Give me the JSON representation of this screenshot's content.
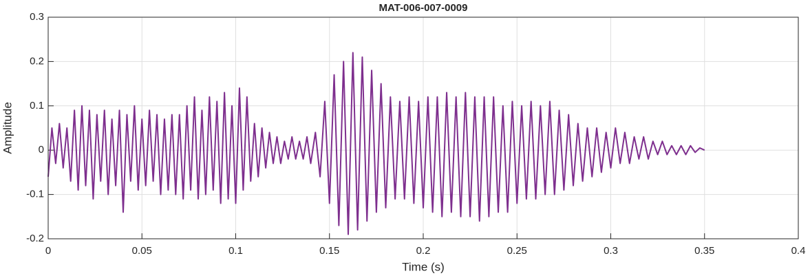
{
  "chart_data": {
    "type": "line",
    "title": "MAT-006-007-0009",
    "x_label": "Time (s)",
    "y_label": "Amplitude",
    "x": [
      0,
      0.002,
      0.004,
      0.006,
      0.008,
      0.01,
      0.012,
      0.014,
      0.016,
      0.018,
      0.02,
      0.022,
      0.024,
      0.026,
      0.028,
      0.03,
      0.032,
      0.034,
      0.036,
      0.038,
      0.04,
      0.042,
      0.044,
      0.046,
      0.048,
      0.05,
      0.052,
      0.054,
      0.056,
      0.058,
      0.06,
      0.062,
      0.064,
      0.066,
      0.068,
      0.07,
      0.072,
      0.074,
      0.076,
      0.078,
      0.08,
      0.082,
      0.084,
      0.086,
      0.088,
      0.09,
      0.092,
      0.094,
      0.096,
      0.098,
      0.1,
      0.102,
      0.104,
      0.106,
      0.108,
      0.11,
      0.112,
      0.114,
      0.116,
      0.118,
      0.12,
      0.122,
      0.124,
      0.126,
      0.128,
      0.13,
      0.132,
      0.134,
      0.136,
      0.138,
      0.14,
      0.1425,
      0.145,
      0.1475,
      0.15,
      0.1525,
      0.155,
      0.1575,
      0.16,
      0.1625,
      0.165,
      0.1675,
      0.17,
      0.1725,
      0.175,
      0.1775,
      0.18,
      0.1825,
      0.185,
      0.1875,
      0.19,
      0.1925,
      0.195,
      0.1975,
      0.2,
      0.2025,
      0.205,
      0.2075,
      0.21,
      0.2125,
      0.215,
      0.2175,
      0.22,
      0.2225,
      0.225,
      0.2275,
      0.23,
      0.2325,
      0.235,
      0.2375,
      0.24,
      0.2425,
      0.245,
      0.2475,
      0.25,
      0.2525,
      0.255,
      0.2575,
      0.26,
      0.2625,
      0.265,
      0.2675,
      0.27,
      0.2725,
      0.275,
      0.2775,
      0.28,
      0.2825,
      0.285,
      0.2875,
      0.29,
      0.2925,
      0.295,
      0.2975,
      0.3,
      0.3025,
      0.305,
      0.3075,
      0.31,
      0.3125,
      0.315,
      0.3175,
      0.32,
      0.3225,
      0.325,
      0.3275,
      0.33,
      0.3325,
      0.335,
      0.3375,
      0.34,
      0.3425,
      0.345,
      0.3475,
      0.35
    ],
    "values": [
      -0.06,
      0.05,
      -0.03,
      0.06,
      -0.04,
      0.05,
      -0.07,
      0.09,
      -0.09,
      0.1,
      -0.08,
      0.09,
      -0.11,
      0.08,
      -0.07,
      0.09,
      -0.1,
      0.07,
      -0.08,
      0.09,
      -0.14,
      0.08,
      -0.07,
      0.1,
      -0.09,
      0.07,
      -0.08,
      0.09,
      -0.07,
      0.08,
      -0.1,
      0.07,
      -0.09,
      0.08,
      -0.1,
      0.08,
      -0.11,
      0.1,
      -0.09,
      0.12,
      -0.11,
      0.09,
      -0.1,
      0.12,
      -0.09,
      0.11,
      -0.12,
      0.13,
      -0.11,
      0.1,
      -0.12,
      0.14,
      -0.09,
      0.12,
      -0.07,
      0.06,
      -0.06,
      0.05,
      -0.04,
      0.04,
      -0.03,
      0.03,
      -0.03,
      0.02,
      -0.02,
      0.03,
      -0.02,
      0.02,
      -0.02,
      0.03,
      -0.03,
      0.04,
      -0.06,
      0.11,
      -0.12,
      0.17,
      -0.17,
      0.2,
      -0.19,
      0.22,
      -0.18,
      0.21,
      -0.16,
      0.18,
      -0.14,
      0.15,
      -0.13,
      0.12,
      -0.11,
      0.11,
      -0.11,
      0.12,
      -0.12,
      0.11,
      -0.13,
      0.12,
      -0.14,
      0.12,
      -0.15,
      0.13,
      -0.14,
      0.12,
      -0.15,
      0.13,
      -0.15,
      0.12,
      -0.16,
      0.12,
      -0.15,
      0.12,
      -0.14,
      0.1,
      -0.14,
      0.11,
      -0.12,
      0.1,
      -0.11,
      0.11,
      -0.11,
      0.1,
      -0.1,
      0.11,
      -0.1,
      0.09,
      -0.09,
      0.08,
      -0.08,
      0.06,
      -0.07,
      0.05,
      -0.06,
      0.05,
      -0.05,
      0.04,
      -0.04,
      0.05,
      -0.03,
      0.04,
      -0.03,
      0.03,
      -0.02,
      0.03,
      -0.02,
      0.02,
      -0.01,
      0.02,
      -0.01,
      0.01,
      -0.01,
      0.01,
      -0.01,
      0.01,
      -0.005,
      0.005,
      0
    ],
    "color": "#7e2f8e",
    "xlim": [
      0,
      0.4
    ],
    "xticks": [
      0,
      0.05,
      0.1,
      0.15,
      0.2,
      0.25,
      0.3,
      0.35,
      0.4
    ],
    "ylim": [
      -0.2,
      0.3
    ],
    "yticks": [
      -0.2,
      -0.1,
      0,
      0.1,
      0.2,
      0.3
    ],
    "grid": true
  }
}
